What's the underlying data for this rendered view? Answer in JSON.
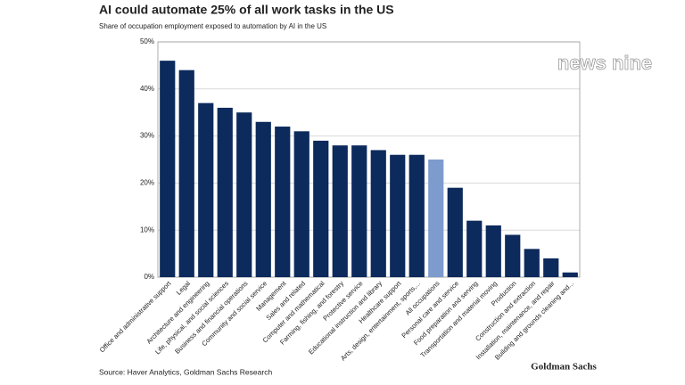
{
  "chart_data": {
    "type": "bar",
    "title": "AI could automate 25% of all work tasks in the US",
    "subtitle": "Share of occupation employment exposed to automation by AI in the US",
    "source": "Source: Haver Analytics, Goldman Sachs Research",
    "logo": "Goldman Sachs",
    "watermark": "news nine",
    "categories": [
      "Office and administrative support",
      "Legal",
      "Architecture and engineering",
      "Life, physical, and social sciences",
      "Business and financial operations",
      "Community and social service",
      "Management",
      "Sales and related",
      "Computer and mathematical",
      "Farming, fishing, and forestry",
      "Protective service",
      "Educational instruction and library",
      "Healthcare support",
      "Arts, design, entertainment, sports,...",
      "All occupations",
      "Personal care and service",
      "Food preparation and serving",
      "Transportation and material moving",
      "Production",
      "Construction and extraction",
      "Installation, maintenance, and repair",
      "Building and grounds cleaning and..."
    ],
    "values": [
      46,
      44,
      37,
      36,
      35,
      33,
      32,
      31,
      29,
      28,
      28,
      27,
      26,
      26,
      25,
      19,
      12,
      11,
      9,
      6,
      4,
      1
    ],
    "colors": [
      "#0c2a5c",
      "#0c2a5c",
      "#0c2a5c",
      "#0c2a5c",
      "#0c2a5c",
      "#0c2a5c",
      "#0c2a5c",
      "#0c2a5c",
      "#0c2a5c",
      "#0c2a5c",
      "#0c2a5c",
      "#0c2a5c",
      "#0c2a5c",
      "#0c2a5c",
      "#7d9ccd",
      "#0c2a5c",
      "#0c2a5c",
      "#0c2a5c",
      "#0c2a5c",
      "#0c2a5c",
      "#0c2a5c",
      "#0c2a5c"
    ],
    "ylim": [
      0,
      50
    ],
    "yticks": [
      {
        "value": 0,
        "label": "0%"
      },
      {
        "value": 10,
        "label": "10%"
      },
      {
        "value": 20,
        "label": "20%"
      },
      {
        "value": 30,
        "label": "30%"
      },
      {
        "value": 40,
        "label": "40%"
      },
      {
        "value": 50,
        "label": "50%"
      }
    ],
    "grid": true
  }
}
